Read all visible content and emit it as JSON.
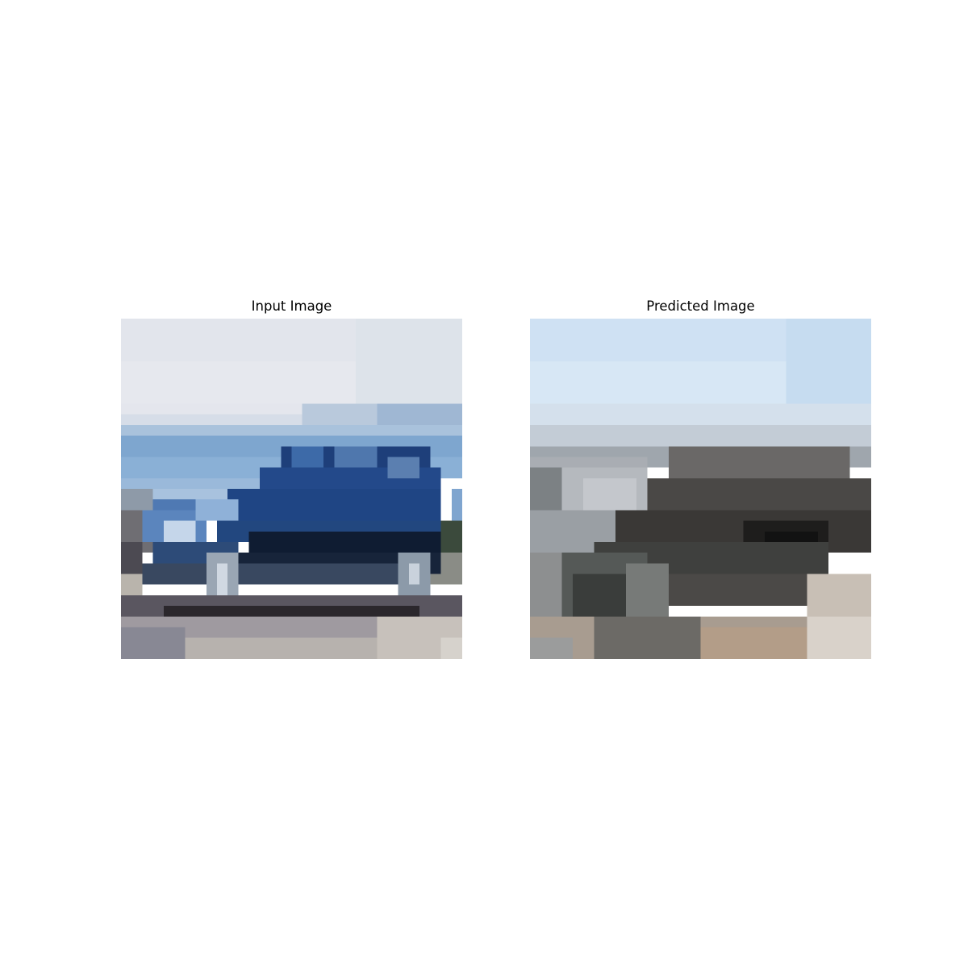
{
  "panels": [
    {
      "title": "Input Image",
      "content": "pixelated low-resolution photo of a blue car on a road with sea and hazy sky behind"
    },
    {
      "title": "Predicted Image",
      "content": "blurry reconstruction with pale blue sky and dark gray car-like blob"
    }
  ],
  "colors": {
    "background": "#ffffff",
    "title_text": "#000000"
  }
}
